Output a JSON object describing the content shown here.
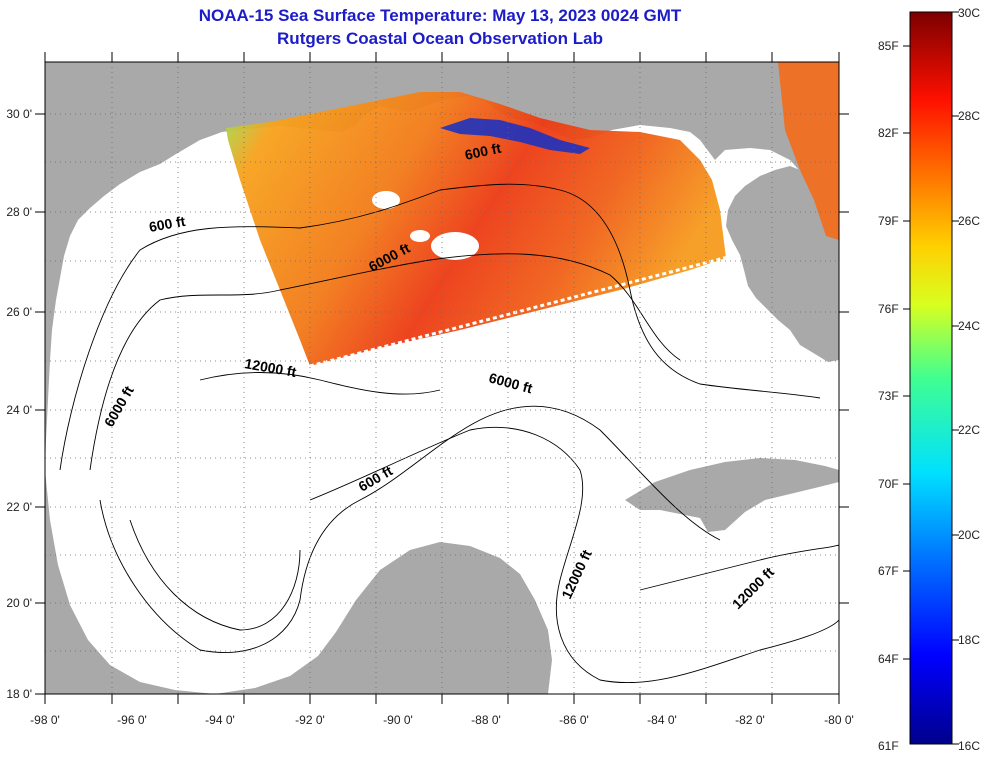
{
  "title": {
    "line1": "NOAA-15 Sea Surface Temperature:  May 13, 2023 0024 GMT",
    "line2": "Rutgers Coastal Ocean Observation Lab"
  },
  "colors": {
    "land": "#a9a9a9",
    "ocean": "#ffffff",
    "title": "#1c1cc8",
    "grid": "#6a6a6a"
  },
  "axes": {
    "longitude_labels": [
      "-98 0'",
      "-96 0'",
      "-94 0'",
      "-92 0'",
      "-90 0'",
      "-88 0'",
      "-86 0'",
      "-84 0'",
      "-82 0'",
      "-80 0'"
    ],
    "latitude_labels": [
      "30 0'",
      "28 0'",
      "26 0'",
      "24 0'",
      "22 0'",
      "20 0'",
      "18 0'"
    ]
  },
  "contour_labels": [
    {
      "text": "600 ft",
      "name": "contour-label-600ft-texas"
    },
    {
      "text": "600 ft",
      "name": "contour-label-600ft-louisiana"
    },
    {
      "text": "6000 ft",
      "name": "contour-label-6000ft-central"
    },
    {
      "text": "12000 ft",
      "name": "contour-label-12000ft-west"
    },
    {
      "text": "6000 ft",
      "name": "contour-label-6000ft-east"
    },
    {
      "text": "6000 ft",
      "name": "contour-label-6000ft-mexico"
    },
    {
      "text": "600 ft",
      "name": "contour-label-600ft-yucatan"
    },
    {
      "text": "12000 ft",
      "name": "contour-label-12000ft-yucatan-channel"
    },
    {
      "text": "12000 ft",
      "name": "contour-label-12000ft-caribbean"
    }
  ],
  "colorbar": {
    "fahrenheit": [
      "85F",
      "82F",
      "79F",
      "76F",
      "73F",
      "70F",
      "67F",
      "64F",
      "61F"
    ],
    "celsius": [
      "30C",
      "28C",
      "26C",
      "24C",
      "22C",
      "20C",
      "18C",
      "16C"
    ],
    "range_c": [
      16,
      30
    ]
  }
}
